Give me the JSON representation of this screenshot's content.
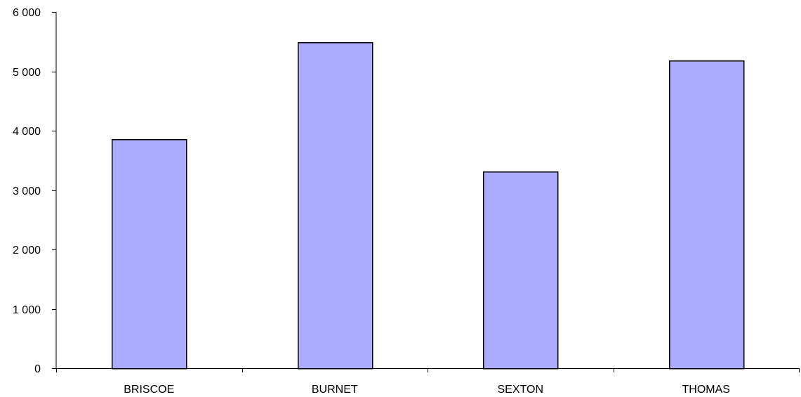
{
  "chart_data": {
    "type": "bar",
    "title": "",
    "xlabel": "",
    "ylabel": "",
    "categories": [
      "BRISCOE",
      "BURNET",
      "SEXTON",
      "THOMAS"
    ],
    "values": [
      3860,
      5490,
      3310,
      5180
    ],
    "ylim": [
      0,
      6000
    ],
    "yticks": [
      0,
      1000,
      2000,
      3000,
      4000,
      5000,
      6000
    ],
    "ytick_labels": [
      "0",
      "1 000",
      "2 000",
      "3 000",
      "4 000",
      "5 000",
      "6 000"
    ],
    "grid": false,
    "legend": "none",
    "bar_color": "#aaaaff",
    "bar_edge_color": "#000000"
  }
}
